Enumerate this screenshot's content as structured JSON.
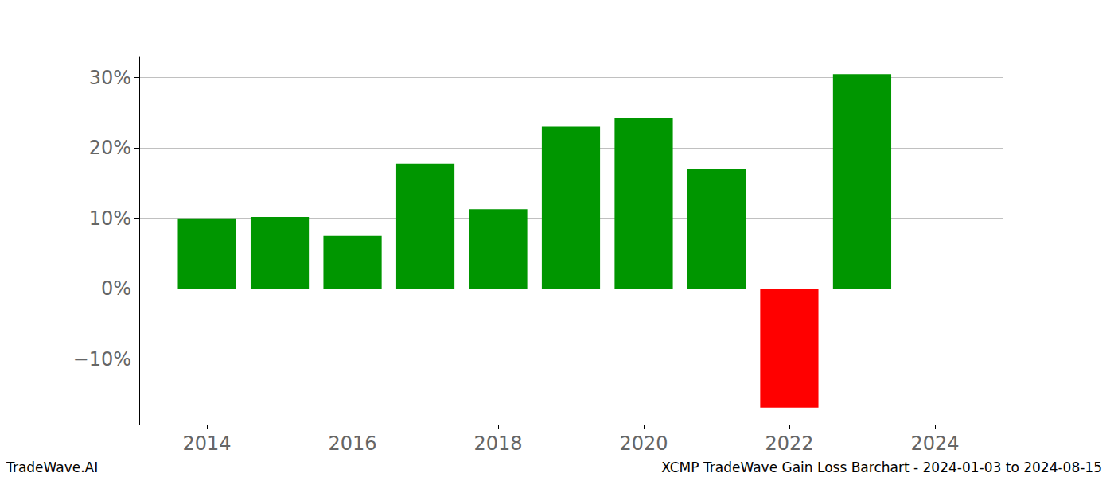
{
  "chart_data": {
    "type": "bar",
    "title": "XCMP TradeWave Gain Loss Barchart - 2024-01-03 to 2024-08-15",
    "annotations": [
      "TradeWave.AI"
    ],
    "x": [
      2014,
      2015,
      2016,
      2017,
      2018,
      2019,
      2020,
      2021,
      2022,
      2023
    ],
    "values": [
      10.0,
      10.2,
      7.5,
      17.8,
      11.3,
      23.0,
      24.2,
      17.0,
      -16.9,
      30.5
    ],
    "colors": [
      "#009600",
      "#009600",
      "#009600",
      "#009600",
      "#009600",
      "#009600",
      "#009600",
      "#009600",
      "#ff0000",
      "#009600"
    ],
    "xlim": [
      2013.07,
      2024.93
    ],
    "xticks": [
      2014,
      2016,
      2018,
      2020,
      2022,
      2024
    ],
    "ylim": [
      -19.3,
      32.9
    ],
    "yticks": [
      {
        "value": -10,
        "label": "−10%"
      },
      {
        "value": 0,
        "label": "0%"
      },
      {
        "value": 10,
        "label": "10%"
      },
      {
        "value": 20,
        "label": "20%"
      },
      {
        "value": 30,
        "label": "30%"
      }
    ],
    "grid": true
  }
}
